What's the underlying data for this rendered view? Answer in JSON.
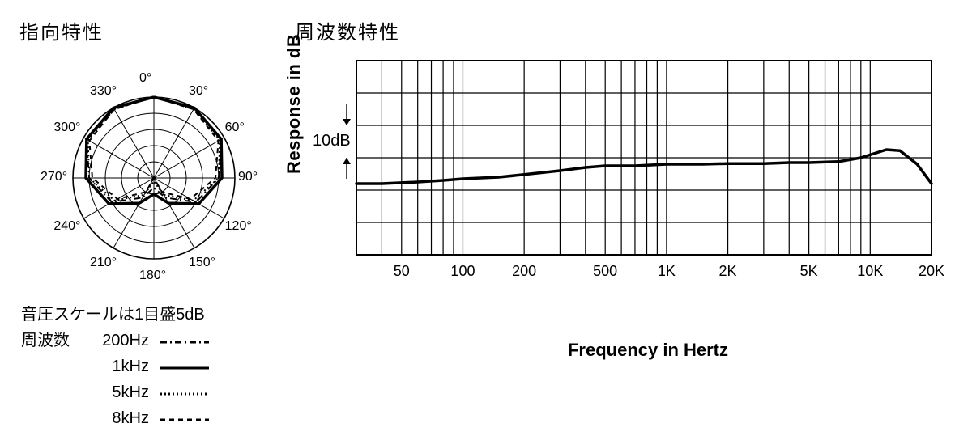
{
  "colors": {
    "bg": "#ffffff",
    "ink": "#000000",
    "grid": "#000000",
    "curve": "#000000"
  },
  "polar": {
    "title": "指向特性",
    "angles_deg": [
      0,
      30,
      60,
      90,
      120,
      150,
      180,
      210,
      240,
      270,
      300,
      330
    ],
    "angle_labels": [
      "0°",
      "30°",
      "60°",
      "90°",
      "120°",
      "150°",
      "180°",
      "210°",
      "240°",
      "270°",
      "300°",
      "330°"
    ],
    "ring_count": 5,
    "ring_spacing_db": 5,
    "scale_note": "音圧スケールは1目盛5dB",
    "legend_title": "周波数",
    "series": [
      {
        "label": "200Hz",
        "dash": "8 4 2 4",
        "width": 2,
        "db_at_angle": {
          "0": 0,
          "30": 0,
          "60": -1,
          "90": -5,
          "120": -10,
          "150": -18,
          "180": -22,
          "210": -18,
          "240": -10,
          "270": -5,
          "300": -1,
          "330": 0
        }
      },
      {
        "label": "1kHz",
        "dash": "",
        "width": 3.5,
        "db_at_angle": {
          "0": 0,
          "30": 0,
          "60": -1,
          "90": -4,
          "120": -9,
          "150": -16,
          "180": -20,
          "210": -16,
          "240": -9,
          "270": -4,
          "300": -1,
          "330": 0
        }
      },
      {
        "label": "5kHz",
        "dash": "2 3",
        "width": 2,
        "db_at_angle": {
          "0": 0,
          "30": -0.5,
          "60": -1.5,
          "90": -5,
          "120": -11,
          "150": -19,
          "180": -24,
          "210": -19,
          "240": -11,
          "270": -5,
          "300": -1.5,
          "330": -0.5
        }
      },
      {
        "label": "8kHz",
        "dash": "6 5",
        "width": 2,
        "db_at_angle": {
          "0": 0,
          "30": -0.5,
          "60": -2,
          "90": -6,
          "120": -12,
          "150": -20,
          "180": -25,
          "210": -20,
          "240": -12,
          "270": -6,
          "300": -2,
          "330": -0.5
        }
      }
    ]
  },
  "freq": {
    "title": "周波数特性",
    "y_title": "Response in dB",
    "x_title": "Frequency in Hertz",
    "db_mark": "10dB",
    "x_min_hz": 30,
    "x_max_hz": 20000,
    "x_ticks": [
      50,
      100,
      200,
      500,
      1000,
      2000,
      5000,
      10000,
      20000
    ],
    "x_tick_labels": [
      "50",
      "100",
      "200",
      "500",
      "1K",
      "2K",
      "5K",
      "10K",
      "20K"
    ],
    "x_gridlines": [
      30,
      40,
      50,
      60,
      70,
      80,
      90,
      100,
      200,
      300,
      400,
      500,
      600,
      700,
      800,
      900,
      1000,
      2000,
      3000,
      4000,
      5000,
      6000,
      7000,
      8000,
      9000,
      10000,
      20000
    ],
    "y_rows": 6,
    "y_row_db": 10,
    "curve_db": [
      {
        "hz": 30,
        "db": -8
      },
      {
        "hz": 40,
        "db": -8
      },
      {
        "hz": 60,
        "db": -7.5
      },
      {
        "hz": 80,
        "db": -7
      },
      {
        "hz": 100,
        "db": -6.5
      },
      {
        "hz": 150,
        "db": -6
      },
      {
        "hz": 200,
        "db": -5.2
      },
      {
        "hz": 300,
        "db": -4
      },
      {
        "hz": 400,
        "db": -3
      },
      {
        "hz": 500,
        "db": -2.5
      },
      {
        "hz": 700,
        "db": -2.5
      },
      {
        "hz": 1000,
        "db": -2
      },
      {
        "hz": 1500,
        "db": -2
      },
      {
        "hz": 2000,
        "db": -1.8
      },
      {
        "hz": 3000,
        "db": -1.8
      },
      {
        "hz": 4000,
        "db": -1.5
      },
      {
        "hz": 5000,
        "db": -1.5
      },
      {
        "hz": 7000,
        "db": -1.2
      },
      {
        "hz": 9000,
        "db": 0
      },
      {
        "hz": 12000,
        "db": 2.5
      },
      {
        "hz": 14000,
        "db": 2.2
      },
      {
        "hz": 17000,
        "db": -2
      },
      {
        "hz": 20000,
        "db": -8
      }
    ],
    "curve_width": 3.5,
    "grid_width": 1.2,
    "border_width": 2
  }
}
